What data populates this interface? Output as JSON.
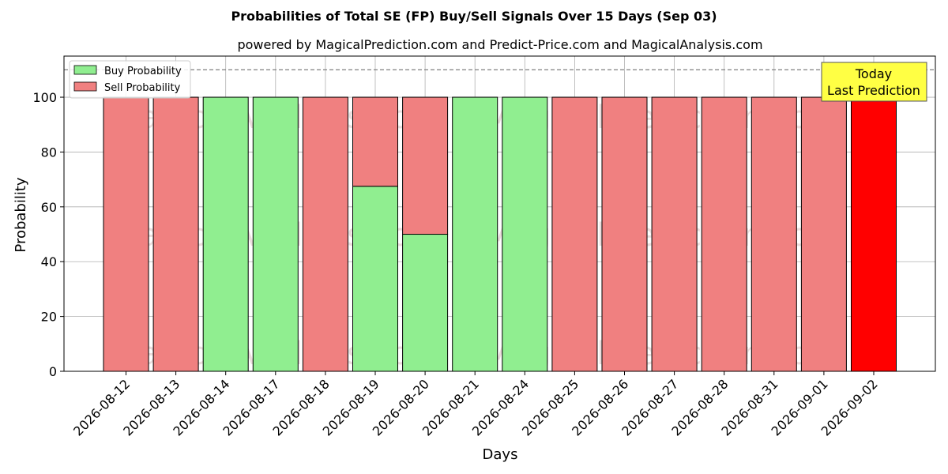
{
  "chart_data": {
    "type": "bar",
    "title": "Probabilities of Total SE (FP) Buy/Sell Signals Over 15 Days (Sep 03)",
    "subtitle": "powered by MagicalPrediction.com and Predict-Price.com and MagicalAnalysis.com",
    "xlabel": "Days",
    "ylabel": "Probability",
    "ylim": [
      0,
      115
    ],
    "yticks": [
      0,
      20,
      40,
      60,
      80,
      100
    ],
    "grid": true,
    "legend_position": "top-left",
    "reference_line": 110,
    "categories": [
      "2026-08-12",
      "2026-08-13",
      "2026-08-14",
      "2026-08-17",
      "2026-08-18",
      "2026-08-19",
      "2026-08-20",
      "2026-08-21",
      "2026-08-24",
      "2026-08-25",
      "2026-08-26",
      "2026-08-27",
      "2026-08-28",
      "2026-08-31",
      "2026-09-01",
      "2026-09-02"
    ],
    "series": [
      {
        "name": "Buy Probability",
        "color": "#90ee90",
        "values": [
          0,
          0,
          100,
          100,
          0,
          67.5,
          50,
          100,
          100,
          0,
          0,
          0,
          0,
          0,
          0,
          0
        ]
      },
      {
        "name": "Sell Probability",
        "color": "#f08080",
        "values": [
          100,
          100,
          0,
          0,
          100,
          32.5,
          50,
          0,
          0,
          100,
          100,
          100,
          100,
          100,
          100,
          100
        ]
      }
    ],
    "highlight": {
      "index": 15,
      "color": "#ff0000"
    },
    "annotation": {
      "line1": "Today",
      "line2": "Last Prediction",
      "bg": "#ffff44"
    },
    "watermarks": [
      "MagicalAnalysis.com",
      "MagicalPrediction.com"
    ]
  }
}
